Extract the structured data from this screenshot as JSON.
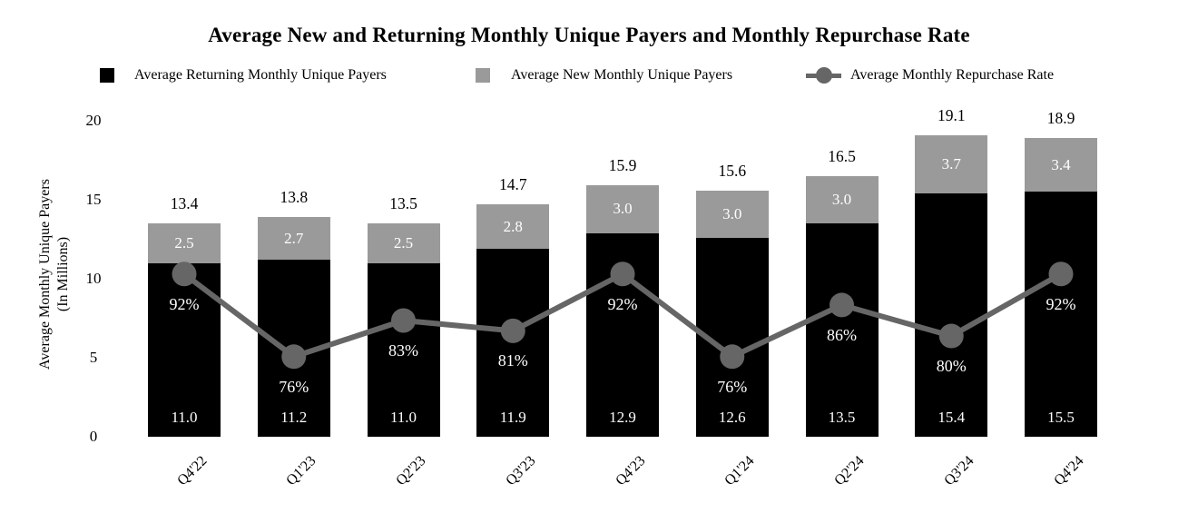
{
  "title": "Average New and Returning Monthly Unique Payers and Monthly Repurchase Rate",
  "colors": {
    "background": "#ffffff",
    "returning_bar": "#000000",
    "new_bar": "#9a9a9a",
    "rate_line": "#666666",
    "text": "#000000",
    "label_on_bar": "#ffffff"
  },
  "legend": {
    "items": [
      {
        "label": "Average Returning Monthly Unique Payers",
        "swatch": "black-square",
        "color": "#000000"
      },
      {
        "label": "Average New Monthly Unique Payers",
        "swatch": "gray-square",
        "color": "#9a9a9a"
      },
      {
        "label": "Average Monthly Repurchase Rate",
        "swatch": "line-with-circle-marker",
        "color": "#666666"
      }
    ]
  },
  "y_axis": {
    "title_line1": "Average Monthly Unique Payers",
    "title_line2": "(In Millions)",
    "tick_labels": [
      "0",
      "5",
      "10",
      "15",
      "20"
    ],
    "tick_values": [
      0,
      5,
      10,
      15,
      20
    ]
  },
  "chart_data": {
    "type": "bar",
    "subtype": "stacked-bars-with-line-overlay",
    "title": "Average New and Returning Monthly Unique Payers and Monthly Repurchase Rate",
    "categories": [
      "Q4'22",
      "Q1'23",
      "Q2'23",
      "Q3'23",
      "Q4'23",
      "Q1'24",
      "Q2'24",
      "Q3'24",
      "Q4'24"
    ],
    "series": [
      {
        "name": "Average Returning Monthly Unique Payers",
        "type": "bar-stack-bottom",
        "color": "#000000",
        "values": [
          11.0,
          11.2,
          11.0,
          11.9,
          12.9,
          12.6,
          13.5,
          15.4,
          15.5
        ],
        "labels": [
          "11.0",
          "11.2",
          "11.0",
          "11.9",
          "12.9",
          "12.6",
          "13.5",
          "15.4",
          "15.5"
        ]
      },
      {
        "name": "Average New Monthly Unique Payers",
        "type": "bar-stack-top",
        "color": "#9a9a9a",
        "values": [
          2.5,
          2.7,
          2.5,
          2.8,
          3.0,
          3.0,
          3.0,
          3.7,
          3.4
        ],
        "labels": [
          "2.5",
          "2.7",
          "2.5",
          "2.8",
          "3.0",
          "3.0",
          "3.0",
          "3.7",
          "3.4"
        ]
      },
      {
        "name": "Average Monthly Repurchase Rate",
        "type": "line",
        "color": "#666666",
        "values_percent": [
          92,
          76,
          83,
          81,
          92,
          76,
          86,
          80,
          92
        ],
        "labels": [
          "92%",
          "76%",
          "83%",
          "81%",
          "92%",
          "76%",
          "86%",
          "80%",
          "92%"
        ]
      }
    ],
    "totals": {
      "values": [
        13.4,
        13.8,
        13.5,
        14.7,
        15.9,
        15.6,
        16.5,
        19.1,
        18.9
      ],
      "labels": [
        "13.4",
        "13.8",
        "13.5",
        "14.7",
        "15.9",
        "15.6",
        "16.5",
        "19.1",
        "18.9"
      ]
    },
    "ylabel": "Average Monthly Unique Payers (In Millions)",
    "ylim": [
      0,
      20
    ],
    "grid": false,
    "legend_position": "top",
    "rate_line_mapping_to_left_axis_units": {
      "offset_pct": 60.5,
      "units_per_pct": 0.327
    }
  }
}
